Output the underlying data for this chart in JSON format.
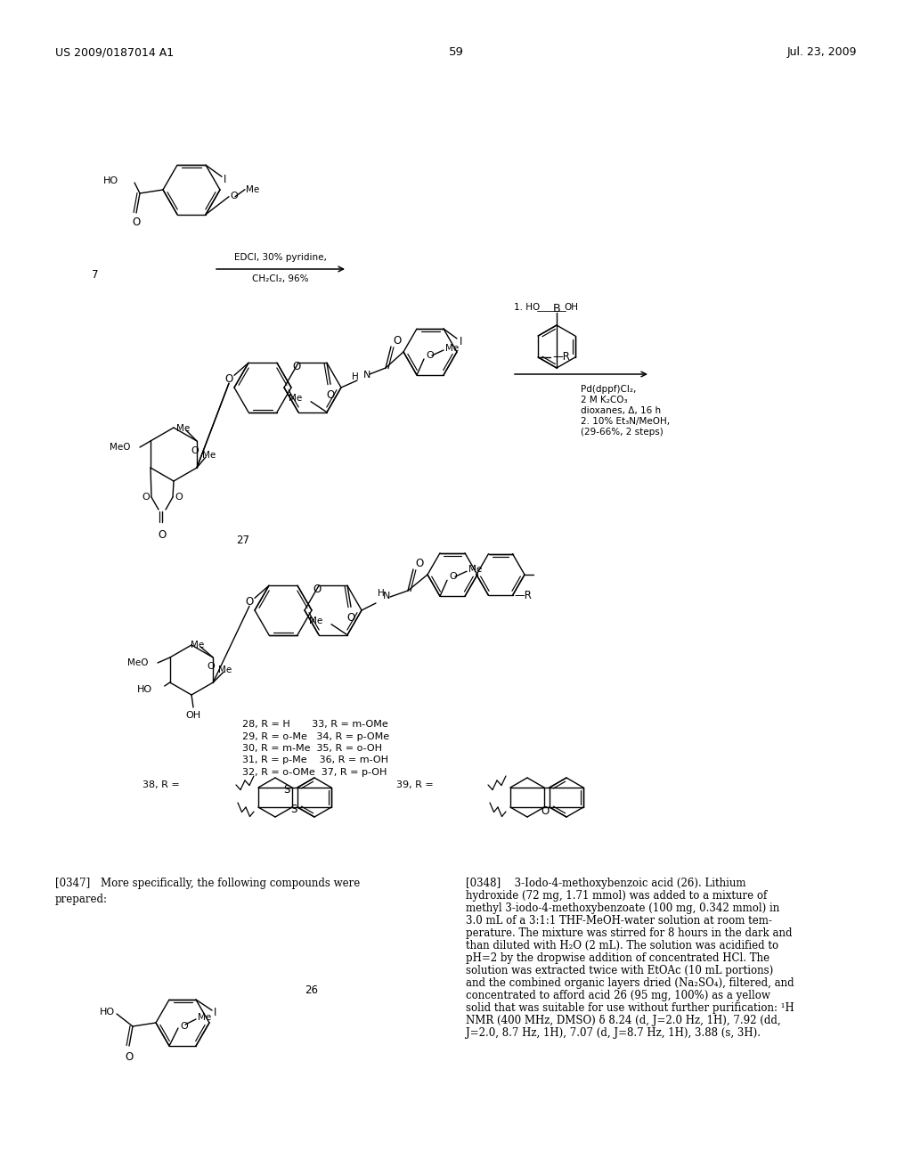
{
  "patent_number": "US 2009/0187014 A1",
  "patent_date": "Jul. 23, 2009",
  "page_number": "59",
  "background_color": "#ffffff",
  "arrow1_label1": "EDCl, 30% pyridine,",
  "arrow1_label2": "CH₂Cl₂, 96%",
  "arrow2_cond": [
    "Pd(dppf)Cl₂,",
    "2 M K₂CO₃",
    "dioxanes, Δ, 16 h",
    "2. 10% Et₃N/MeOH,",
    "(29-66%, 2 steps)"
  ],
  "boronic_label": "1. HO     OH",
  "labels_28_37": [
    "28, R = H       33, R = m-OMe",
    "29, R = o-Me   34, R = p-OMe",
    "30, R = m-Me  35, R = o-OH",
    "31, R = p-Me    36, R = m-OH",
    "32, R = o-OMe  37, R = p-OH"
  ],
  "p347": "[0347] More specifically, the following compounds were\nprepared:",
  "p348_lines": [
    "[0348]  3-Iodo-4-methoxybenzoic acid (26). Lithium",
    "hydroxide (72 mg, 1.71 mmol) was added to a mixture of",
    "methyl 3-iodo-4-methoxybenzoate (100 mg, 0.342 mmol) in",
    "3.0 mL of a 3:1:1 THF-MeOH-water solution at room tem-",
    "perature. The mixture was stirred for 8 hours in the dark and",
    "than diluted with H₂O (2 mL). The solution was acidified to",
    "pH=2 by the dropwise addition of concentrated HCl. The",
    "solution was extracted twice with EtOAc (10 mL portions)",
    "and the combined organic layers dried (Na₂SO₄), filtered, and",
    "concentrated to afford acid 26 (95 mg, 100%) as a yellow",
    "solid that was suitable for use without further purification: ¹H",
    "NMR (400 MHz, DMSO) δ 8.24 (d, J=2.0 Hz, 1H), 7.92 (dd,",
    "J=2.0, 8.7 Hz, 1H), 7.07 (d, J=8.7 Hz, 1H), 3.88 (s, 3H)."
  ]
}
